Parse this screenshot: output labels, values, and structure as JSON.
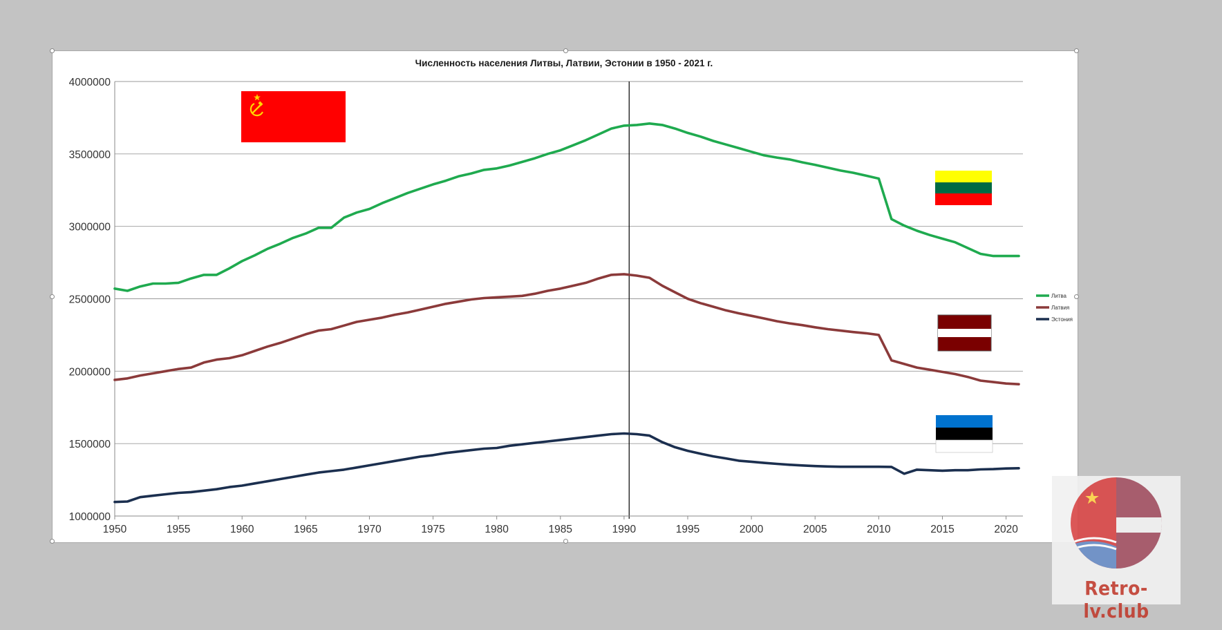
{
  "chart_data": {
    "type": "line",
    "title": "Численность населения Литвы, Латвии, Эстонии в 1950 - 2021 г.",
    "xlabel": "",
    "ylabel": "",
    "xlim": [
      1950,
      2021
    ],
    "ylim": [
      1000000,
      4000000
    ],
    "yticks": [
      "1000000",
      "1500000",
      "2000000",
      "2500000",
      "3000000",
      "3500000",
      "4000000"
    ],
    "xticks": [
      "1950",
      "1955",
      "1960",
      "1965",
      "1970",
      "1975",
      "1980",
      "1985",
      "1990",
      "1995",
      "2000",
      "2005",
      "2010",
      "2015",
      "2020"
    ],
    "grid": "horizontal",
    "legend_position": "right",
    "reference_line_year": 1990.4,
    "x": [
      1950,
      1951,
      1952,
      1953,
      1954,
      1955,
      1956,
      1957,
      1958,
      1959,
      1960,
      1961,
      1962,
      1963,
      1964,
      1965,
      1966,
      1967,
      1968,
      1969,
      1970,
      1971,
      1972,
      1973,
      1974,
      1975,
      1976,
      1977,
      1978,
      1979,
      1980,
      1981,
      1982,
      1983,
      1984,
      1985,
      1986,
      1987,
      1988,
      1989,
      1990,
      1991,
      1992,
      1993,
      1994,
      1995,
      1996,
      1997,
      1998,
      1999,
      2000,
      2001,
      2002,
      2003,
      2004,
      2005,
      2006,
      2007,
      2008,
      2009,
      2010,
      2011,
      2012,
      2013,
      2014,
      2015,
      2016,
      2017,
      2018,
      2019,
      2020,
      2021
    ],
    "series": [
      {
        "name": "Литва",
        "color": "#1faa4f",
        "values": [
          2570000,
          2555000,
          2585000,
          2605000,
          2605000,
          2610000,
          2640000,
          2665000,
          2665000,
          2710000,
          2760000,
          2800000,
          2845000,
          2880000,
          2920000,
          2950000,
          2990000,
          2990000,
          3060000,
          3095000,
          3120000,
          3160000,
          3195000,
          3230000,
          3260000,
          3290000,
          3315000,
          3345000,
          3365000,
          3390000,
          3400000,
          3420000,
          3445000,
          3470000,
          3500000,
          3525000,
          3560000,
          3595000,
          3635000,
          3675000,
          3695000,
          3700000,
          3710000,
          3700000,
          3675000,
          3645000,
          3620000,
          3590000,
          3565000,
          3540000,
          3515000,
          3490000,
          3475000,
          3462000,
          3442000,
          3425000,
          3405000,
          3385000,
          3370000,
          3350000,
          3330000,
          3050000,
          3005000,
          2970000,
          2940000,
          2915000,
          2890000,
          2850000,
          2810000,
          2795000,
          2795000,
          2795000
        ]
      },
      {
        "name": "Латвия",
        "color": "#8b3a3a",
        "values": [
          1940000,
          1950000,
          1970000,
          1985000,
          2000000,
          2015000,
          2025000,
          2060000,
          2080000,
          2090000,
          2110000,
          2140000,
          2170000,
          2195000,
          2225000,
          2255000,
          2280000,
          2290000,
          2315000,
          2340000,
          2355000,
          2370000,
          2390000,
          2405000,
          2425000,
          2445000,
          2465000,
          2480000,
          2495000,
          2505000,
          2510000,
          2515000,
          2520000,
          2535000,
          2555000,
          2570000,
          2590000,
          2610000,
          2640000,
          2665000,
          2670000,
          2660000,
          2645000,
          2590000,
          2545000,
          2500000,
          2470000,
          2445000,
          2420000,
          2400000,
          2382000,
          2364000,
          2345000,
          2330000,
          2318000,
          2303000,
          2290000,
          2280000,
          2270000,
          2262000,
          2250000,
          2075000,
          2050000,
          2025000,
          2010000,
          1995000,
          1980000,
          1960000,
          1935000,
          1925000,
          1915000,
          1910000
        ]
      },
      {
        "name": "Эстония",
        "color": "#1b2f4f",
        "values": [
          1097000,
          1100000,
          1130000,
          1140000,
          1150000,
          1160000,
          1165000,
          1175000,
          1185000,
          1200000,
          1210000,
          1225000,
          1240000,
          1255000,
          1270000,
          1285000,
          1300000,
          1310000,
          1320000,
          1335000,
          1350000,
          1365000,
          1380000,
          1395000,
          1410000,
          1420000,
          1435000,
          1445000,
          1455000,
          1465000,
          1470000,
          1485000,
          1495000,
          1505000,
          1515000,
          1525000,
          1535000,
          1545000,
          1555000,
          1565000,
          1570000,
          1565000,
          1555000,
          1510000,
          1475000,
          1450000,
          1430000,
          1412000,
          1398000,
          1382000,
          1375000,
          1367000,
          1360000,
          1354000,
          1349000,
          1345000,
          1342000,
          1340000,
          1340000,
          1340000,
          1340000,
          1339000,
          1292000,
          1320000,
          1316000,
          1313000,
          1316000,
          1316000,
          1322000,
          1324000,
          1328000,
          1330000
        ]
      }
    ],
    "images": [
      {
        "name": "ussr-flag",
        "colors": [
          "#ff0000",
          "#ffd700"
        ]
      },
      {
        "name": "lithuania-flag",
        "colors": [
          "#ffff00",
          "#006a44",
          "#ff0000"
        ]
      },
      {
        "name": "latvia-flag",
        "colors": [
          "#7a0000",
          "#ffffff",
          "#7a0000"
        ]
      },
      {
        "name": "estonia-flag",
        "colors": [
          "#0072ce",
          "#000000",
          "#ffffff"
        ]
      }
    ]
  },
  "watermark": {
    "text": "Retro-lv.club",
    "colors": [
      "#d63b3b",
      "#6c8fc8",
      "#a14b5b"
    ]
  }
}
